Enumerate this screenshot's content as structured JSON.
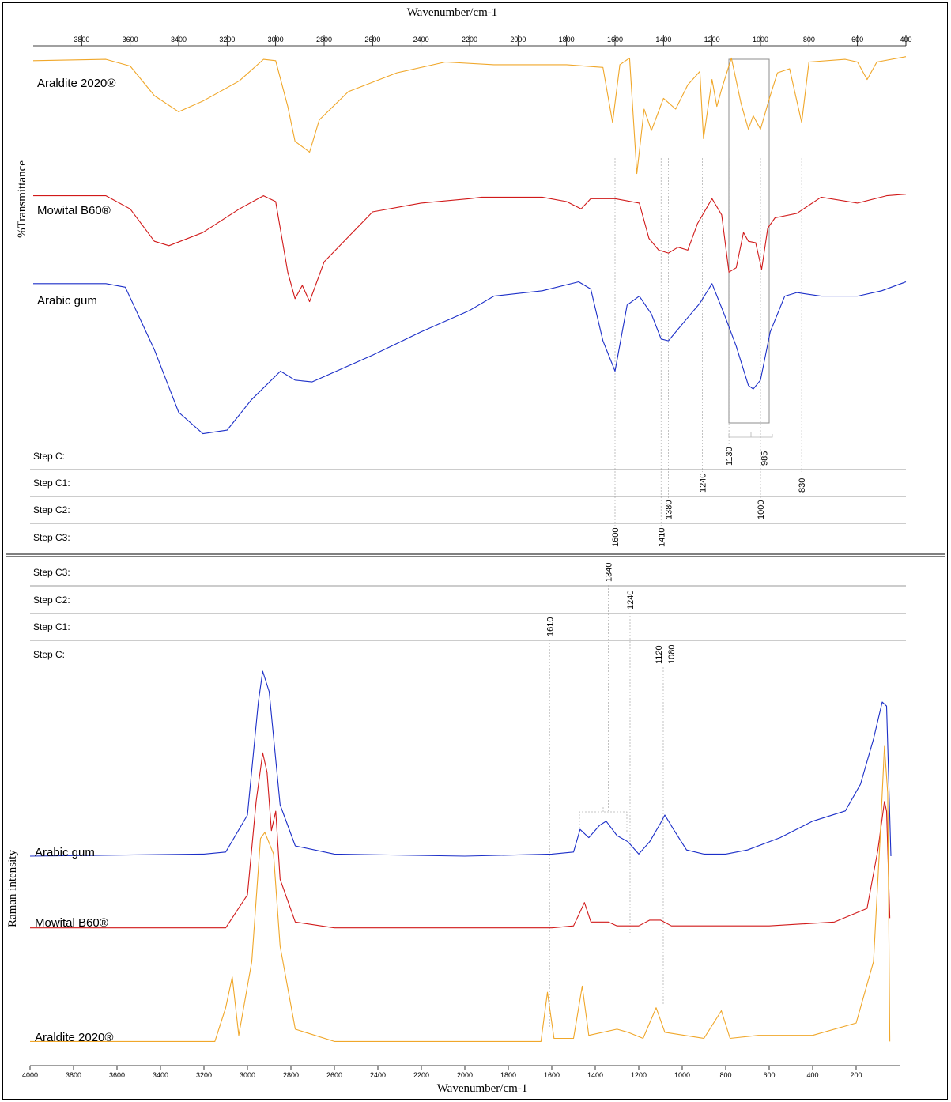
{
  "chart_data": [
    {
      "type": "line",
      "technique": "FTIR",
      "xlabel": "Wavenumber/cm-1",
      "ylabel": "%Transmittance",
      "xlim": [
        4000,
        400
      ],
      "x_reversed": true,
      "x_ticks": [
        "3800",
        "3600",
        "3400",
        "3200",
        "3000",
        "2800",
        "2600",
        "2400",
        "2200",
        "2000",
        "1800",
        "1600",
        "1400",
        "1200",
        "1000",
        "800",
        "600",
        "400"
      ],
      "series": [
        {
          "name": "Araldite 2020®",
          "color": "#f0a72a",
          "points": [
            [
              4000,
              0.96
            ],
            [
              3700,
              0.97
            ],
            [
              3600,
              0.92
            ],
            [
              3500,
              0.7
            ],
            [
              3400,
              0.58
            ],
            [
              3300,
              0.66
            ],
            [
              3150,
              0.81
            ],
            [
              3050,
              0.97
            ],
            [
              3000,
              0.96
            ],
            [
              2950,
              0.62
            ],
            [
              2920,
              0.36
            ],
            [
              2860,
              0.28
            ],
            [
              2820,
              0.52
            ],
            [
              2700,
              0.73
            ],
            [
              2500,
              0.87
            ],
            [
              2300,
              0.95
            ],
            [
              2100,
              0.93
            ],
            [
              1900,
              0.93
            ],
            [
              1800,
              0.93
            ],
            [
              1650,
              0.91
            ],
            [
              1610,
              0.5
            ],
            [
              1580,
              0.93
            ],
            [
              1540,
              0.98
            ],
            [
              1510,
              0.12
            ],
            [
              1480,
              0.6
            ],
            [
              1450,
              0.44
            ],
            [
              1400,
              0.68
            ],
            [
              1350,
              0.6
            ],
            [
              1300,
              0.78
            ],
            [
              1250,
              0.88
            ],
            [
              1235,
              0.38
            ],
            [
              1200,
              0.82
            ],
            [
              1180,
              0.62
            ],
            [
              1160,
              0.75
            ],
            [
              1120,
              0.98
            ],
            [
              1080,
              0.64
            ],
            [
              1050,
              0.45
            ],
            [
              1030,
              0.55
            ],
            [
              1000,
              0.45
            ],
            [
              960,
              0.7
            ],
            [
              930,
              0.87
            ],
            [
              880,
              0.9
            ],
            [
              830,
              0.5
            ],
            [
              800,
              0.95
            ],
            [
              650,
              0.97
            ],
            [
              600,
              0.95
            ],
            [
              560,
              0.82
            ],
            [
              520,
              0.95
            ],
            [
              400,
              0.99
            ]
          ]
        },
        {
          "name": "Mowital B60®",
          "color": "#d11a1a",
          "points": [
            [
              4000,
              0.97
            ],
            [
              3700,
              0.97
            ],
            [
              3600,
              0.88
            ],
            [
              3500,
              0.66
            ],
            [
              3440,
              0.63
            ],
            [
              3300,
              0.72
            ],
            [
              3150,
              0.88
            ],
            [
              3050,
              0.97
            ],
            [
              3000,
              0.93
            ],
            [
              2950,
              0.45
            ],
            [
              2920,
              0.27
            ],
            [
              2890,
              0.36
            ],
            [
              2860,
              0.25
            ],
            [
              2800,
              0.52
            ],
            [
              2600,
              0.86
            ],
            [
              2400,
              0.92
            ],
            [
              2200,
              0.95
            ],
            [
              2150,
              0.96
            ],
            [
              1900,
              0.96
            ],
            [
              1800,
              0.93
            ],
            [
              1740,
              0.88
            ],
            [
              1700,
              0.95
            ],
            [
              1600,
              0.95
            ],
            [
              1500,
              0.92
            ],
            [
              1460,
              0.68
            ],
            [
              1420,
              0.6
            ],
            [
              1380,
              0.58
            ],
            [
              1340,
              0.62
            ],
            [
              1300,
              0.6
            ],
            [
              1260,
              0.78
            ],
            [
              1200,
              0.95
            ],
            [
              1160,
              0.84
            ],
            [
              1130,
              0.45
            ],
            [
              1100,
              0.48
            ],
            [
              1070,
              0.72
            ],
            [
              1050,
              0.66
            ],
            [
              1020,
              0.65
            ],
            [
              995,
              0.47
            ],
            [
              970,
              0.75
            ],
            [
              940,
              0.82
            ],
            [
              850,
              0.85
            ],
            [
              750,
              0.96
            ],
            [
              600,
              0.92
            ],
            [
              480,
              0.97
            ],
            [
              400,
              0.98
            ]
          ]
        },
        {
          "name": "Arabic gum",
          "color": "#1c2fc8",
          "points": [
            [
              4000,
              0.97
            ],
            [
              3700,
              0.97
            ],
            [
              3620,
              0.95
            ],
            [
              3500,
              0.6
            ],
            [
              3400,
              0.25
            ],
            [
              3300,
              0.13
            ],
            [
              3200,
              0.15
            ],
            [
              3100,
              0.32
            ],
            [
              2980,
              0.48
            ],
            [
              2920,
              0.43
            ],
            [
              2850,
              0.42
            ],
            [
              2600,
              0.57
            ],
            [
              2400,
              0.7
            ],
            [
              2200,
              0.82
            ],
            [
              2100,
              0.9
            ],
            [
              1900,
              0.93
            ],
            [
              1750,
              0.98
            ],
            [
              1700,
              0.94
            ],
            [
              1650,
              0.65
            ],
            [
              1600,
              0.48
            ],
            [
              1550,
              0.85
            ],
            [
              1500,
              0.9
            ],
            [
              1450,
              0.8
            ],
            [
              1410,
              0.66
            ],
            [
              1380,
              0.65
            ],
            [
              1300,
              0.78
            ],
            [
              1250,
              0.86
            ],
            [
              1200,
              0.97
            ],
            [
              1150,
              0.8
            ],
            [
              1100,
              0.62
            ],
            [
              1050,
              0.4
            ],
            [
              1030,
              0.38
            ],
            [
              1000,
              0.43
            ],
            [
              960,
              0.7
            ],
            [
              900,
              0.9
            ],
            [
              850,
              0.92
            ],
            [
              750,
              0.9
            ],
            [
              600,
              0.9
            ],
            [
              500,
              0.93
            ],
            [
              400,
              0.98
            ]
          ]
        }
      ],
      "steps": [
        "Step C:",
        "Step C1:",
        "Step C2:",
        "Step C3:"
      ],
      "annotations": [
        {
          "text": "985",
          "step": "Step C:"
        },
        {
          "text": "1130",
          "step": "Step C:"
        },
        {
          "text": "1240",
          "step": "Step C1:"
        },
        {
          "text": "830",
          "step": "Step C1:"
        },
        {
          "text": "1380",
          "step": "Step C2:"
        },
        {
          "text": "1000",
          "step": "Step C2:"
        },
        {
          "text": "1600",
          "step": "Step C3:"
        },
        {
          "text": "1410",
          "step": "Step C3:"
        }
      ]
    },
    {
      "type": "line",
      "technique": "Raman",
      "xlabel": "Wavenumber/cm-1",
      "ylabel": "Raman intensity",
      "xlim": [
        4000,
        0
      ],
      "x_reversed": true,
      "x_ticks": [
        "4000",
        "3800",
        "3600",
        "3400",
        "3200",
        "3000",
        "2800",
        "2600",
        "2400",
        "2200",
        "2000",
        "1800",
        "1600",
        "1400",
        "1200",
        "1000",
        "800",
        "600",
        "400",
        "200"
      ],
      "series": [
        {
          "name": "Arabic gum",
          "color": "#1c2fc8",
          "points": [
            [
              4000,
              0.05
            ],
            [
              3200,
              0.06
            ],
            [
              3100,
              0.07
            ],
            [
              3000,
              0.25
            ],
            [
              2950,
              0.8
            ],
            [
              2930,
              0.95
            ],
            [
              2900,
              0.85
            ],
            [
              2850,
              0.3
            ],
            [
              2780,
              0.1
            ],
            [
              2600,
              0.06
            ],
            [
              2000,
              0.05
            ],
            [
              1600,
              0.06
            ],
            [
              1500,
              0.07
            ],
            [
              1470,
              0.18
            ],
            [
              1430,
              0.14
            ],
            [
              1380,
              0.2
            ],
            [
              1350,
              0.22
            ],
            [
              1300,
              0.15
            ],
            [
              1250,
              0.12
            ],
            [
              1200,
              0.06
            ],
            [
              1150,
              0.12
            ],
            [
              1100,
              0.21
            ],
            [
              1080,
              0.25
            ],
            [
              1040,
              0.18
            ],
            [
              980,
              0.08
            ],
            [
              900,
              0.06
            ],
            [
              800,
              0.06
            ],
            [
              700,
              0.08
            ],
            [
              550,
              0.14
            ],
            [
              400,
              0.22
            ],
            [
              250,
              0.27
            ],
            [
              180,
              0.4
            ],
            [
              120,
              0.62
            ],
            [
              80,
              0.8
            ],
            [
              60,
              0.78
            ],
            [
              40,
              0.05
            ]
          ]
        },
        {
          "name": "Mowital B60®",
          "color": "#d11a1a",
          "points": [
            [
              4000,
              0.05
            ],
            [
              3100,
              0.05
            ],
            [
              3000,
              0.22
            ],
            [
              2960,
              0.7
            ],
            [
              2930,
              0.95
            ],
            [
              2910,
              0.85
            ],
            [
              2890,
              0.55
            ],
            [
              2870,
              0.65
            ],
            [
              2850,
              0.3
            ],
            [
              2780,
              0.08
            ],
            [
              2600,
              0.05
            ],
            [
              1600,
              0.05
            ],
            [
              1500,
              0.06
            ],
            [
              1450,
              0.18
            ],
            [
              1420,
              0.08
            ],
            [
              1340,
              0.08
            ],
            [
              1300,
              0.06
            ],
            [
              1200,
              0.06
            ],
            [
              1150,
              0.09
            ],
            [
              1100,
              0.09
            ],
            [
              1050,
              0.06
            ],
            [
              900,
              0.06
            ],
            [
              600,
              0.06
            ],
            [
              300,
              0.08
            ],
            [
              150,
              0.15
            ],
            [
              100,
              0.45
            ],
            [
              70,
              0.7
            ],
            [
              60,
              0.65
            ],
            [
              45,
              0.1
            ]
          ]
        },
        {
          "name": "Araldite 2020®",
          "color": "#f0a72a",
          "points": [
            [
              4000,
              0.04
            ],
            [
              3150,
              0.04
            ],
            [
              3100,
              0.15
            ],
            [
              3070,
              0.25
            ],
            [
              3040,
              0.06
            ],
            [
              2980,
              0.3
            ],
            [
              2940,
              0.7
            ],
            [
              2920,
              0.72
            ],
            [
              2880,
              0.65
            ],
            [
              2850,
              0.35
            ],
            [
              2780,
              0.08
            ],
            [
              2600,
              0.04
            ],
            [
              1650,
              0.04
            ],
            [
              1620,
              0.2
            ],
            [
              1590,
              0.05
            ],
            [
              1500,
              0.05
            ],
            [
              1460,
              0.22
            ],
            [
              1430,
              0.06
            ],
            [
              1300,
              0.08
            ],
            [
              1250,
              0.07
            ],
            [
              1180,
              0.05
            ],
            [
              1120,
              0.15
            ],
            [
              1080,
              0.07
            ],
            [
              900,
              0.05
            ],
            [
              820,
              0.14
            ],
            [
              780,
              0.05
            ],
            [
              650,
              0.06
            ],
            [
              400,
              0.06
            ],
            [
              200,
              0.1
            ],
            [
              120,
              0.3
            ],
            [
              90,
              0.7
            ],
            [
              70,
              1.0
            ],
            [
              55,
              0.85
            ],
            [
              45,
              0.04
            ]
          ]
        }
      ],
      "steps": [
        "Step C3:",
        "Step C2:",
        "Step C1:",
        "Step C:"
      ],
      "annotations": [
        {
          "text": "1340",
          "step": "Step C3:"
        },
        {
          "text": "1240",
          "step": "Step C2:"
        },
        {
          "text": "1610",
          "step": "Step C1:"
        },
        {
          "text": "1120",
          "step": "Step C:"
        },
        {
          "text": "1080",
          "step": "Step C:"
        }
      ]
    }
  ]
}
